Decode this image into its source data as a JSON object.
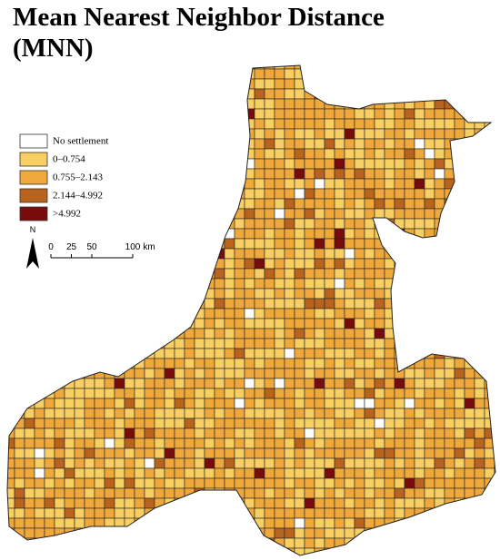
{
  "title_lines": [
    "Mean Nearest Neighbor Distance",
    "(MNN)"
  ],
  "legend": [
    {
      "label": "No settlement",
      "color": "#ffffff"
    },
    {
      "label": "0–0.754",
      "color": "#f8cf62"
    },
    {
      "label": "0.755–2.143",
      "color": "#eea83c"
    },
    {
      "label": "2.144–4.992",
      "color": "#b9641e"
    },
    {
      "label": ">4.992",
      "color": "#780c0c"
    }
  ],
  "north": "N",
  "scale_bar": {
    "ticks": [
      0,
      25,
      50,
      100
    ],
    "unit": "km"
  }
}
